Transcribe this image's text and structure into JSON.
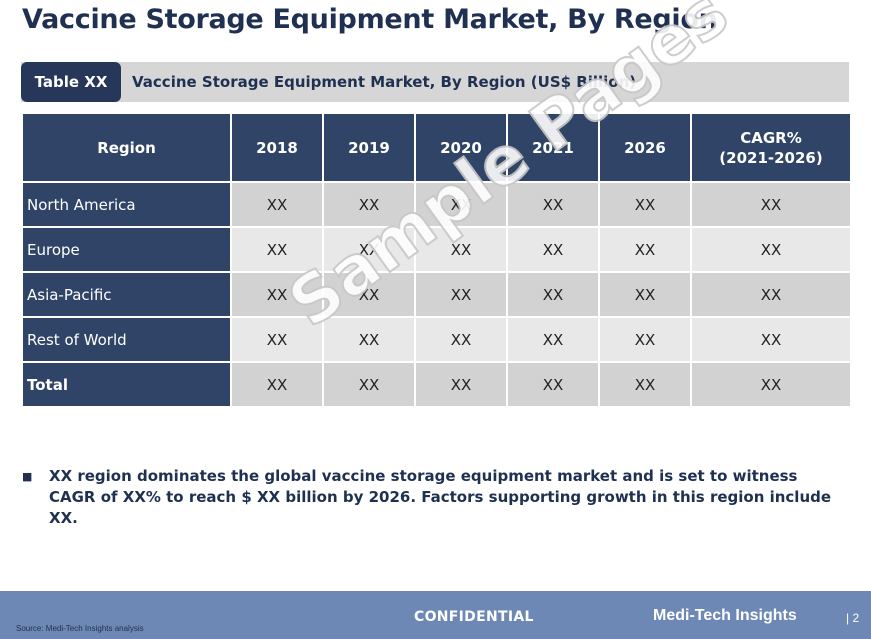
{
  "page": {
    "title": "Vaccine Storage Equipment Market, By Region"
  },
  "table_header": {
    "tag": "Table XX",
    "caption": "Vaccine Storage Equipment Market, By Region (US$ Billion)"
  },
  "table": {
    "columns": [
      "Region",
      "2018",
      "2019",
      "2020",
      "2021",
      "2026"
    ],
    "cagr_header": {
      "line1": "CAGR%",
      "line2": "(2021-2026)"
    },
    "rows": [
      {
        "region": "North America",
        "values": [
          "XX",
          "XX",
          "XX",
          "XX",
          "XX",
          "XX"
        ]
      },
      {
        "region": "Europe",
        "values": [
          "XX",
          "XX",
          "XX",
          "XX",
          "XX",
          "XX"
        ]
      },
      {
        "region": "Asia-Pacific",
        "values": [
          "XX",
          "XX",
          "XX",
          "XX",
          "XX",
          "XX"
        ]
      },
      {
        "region": "Rest of World",
        "values": [
          "XX",
          "XX",
          "XX",
          "XX",
          "XX",
          "XX"
        ]
      },
      {
        "region": "Total",
        "values": [
          "XX",
          "XX",
          "XX",
          "XX",
          "XX",
          "XX"
        ]
      }
    ]
  },
  "watermark": "Sample Pages",
  "bullet": {
    "marker": "■",
    "text": "XX region dominates the global vaccine storage equipment market and is set to witness CAGR of XX% to reach $ XX billion by 2026. Factors supporting growth in this region include XX."
  },
  "footer": {
    "source": "Source: Medi-Tech Insights analysis",
    "confidential": "CONFIDENTIAL",
    "brand": "Medi-Tech Insights",
    "page": "| 2"
  },
  "colors": {
    "navy": "#2f4466",
    "title": "#1f3050",
    "footer": "#6d88b5",
    "row_odd": "#d2d2d3",
    "row_even": "#e8e8e8"
  }
}
